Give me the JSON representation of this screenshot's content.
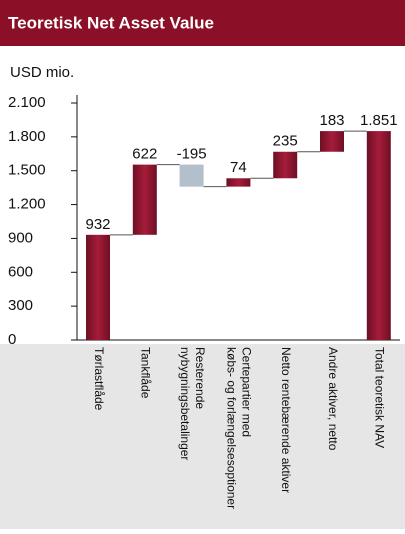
{
  "chart_data": {
    "type": "waterfall",
    "title": "Teoretisk Net Asset Value",
    "y_label": "USD mio.",
    "categories": [
      [
        "Tørlastflåde"
      ],
      [
        "Tankflåde"
      ],
      [
        "Resterende",
        "nybygningsbetalinger"
      ],
      [
        "Certepartier med",
        "købs- og forlængelsesoptioner"
      ],
      [
        "Netto rentebærende aktiver"
      ],
      [
        "Andre aktiver, netto"
      ],
      [
        "Total teoretisk NAV"
      ]
    ],
    "values": [
      932,
      622,
      -195,
      74,
      235,
      183,
      1851
    ],
    "value_labels": [
      "932",
      "622",
      "-195",
      "74",
      "235",
      "183",
      "1.851"
    ],
    "color": "#8e1631",
    "negative_color": "#b3bfcb",
    "ylim": [
      0,
      2100
    ],
    "yticks": [
      0,
      300,
      600,
      900,
      {
        "value": 1200,
        "label": "1.200"
      },
      {
        "value": 1500,
        "label": "1.500"
      },
      {
        "value": 1800,
        "label": "1.800"
      },
      {
        "value": 2100,
        "label": "2.100"
      }
    ]
  }
}
